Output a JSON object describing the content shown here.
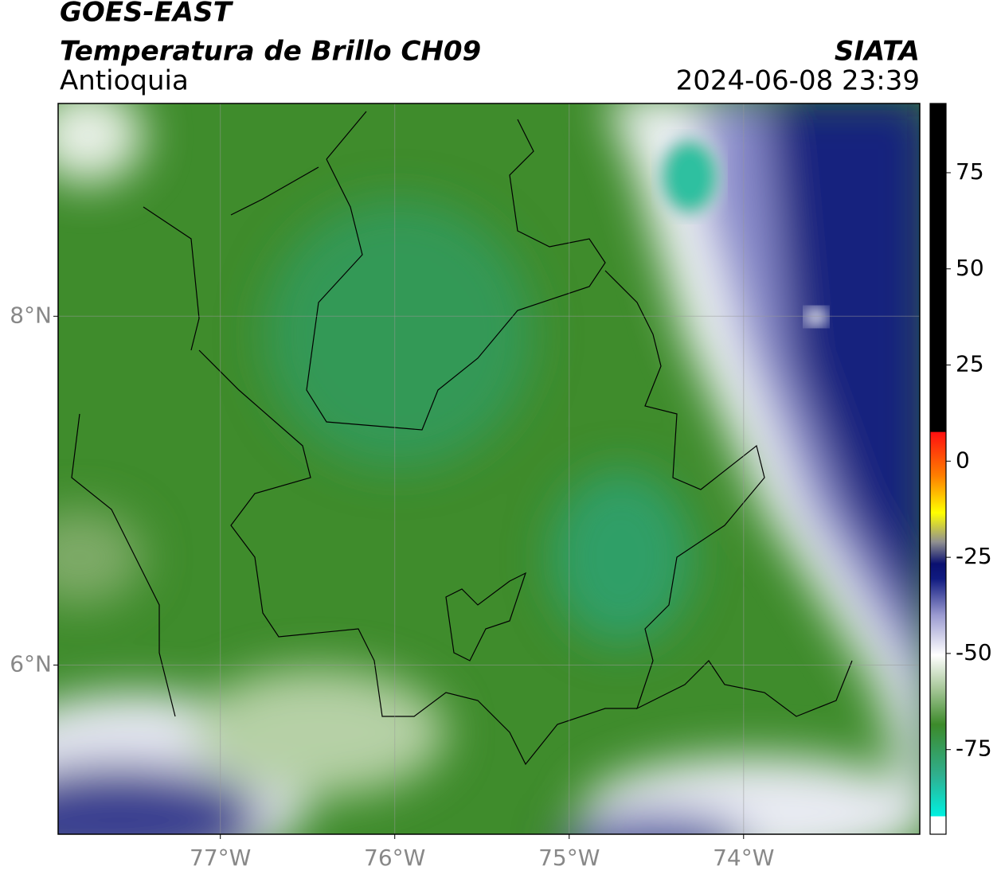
{
  "header": {
    "title": "GOES-EAST",
    "subtitle": "Temperatura de Brillo CH09",
    "region": "Antioquia",
    "source": "SIATA",
    "datetime": "2024-06-08 23:39"
  },
  "map": {
    "xlim": [
      -77.93,
      -72.99
    ],
    "ylim": [
      5.03,
      9.22
    ],
    "xticks": [
      {
        "value": -77,
        "label": "77°W"
      },
      {
        "value": -76,
        "label": "76°W"
      },
      {
        "value": -75,
        "label": "75°W"
      },
      {
        "value": -74,
        "label": "74°W"
      }
    ],
    "yticks": [
      {
        "value": 8,
        "label": "8°N"
      },
      {
        "value": 6,
        "label": "6°N"
      }
    ],
    "grid": true
  },
  "colorbar": {
    "lim": [
      -97,
      93
    ],
    "ticks": [
      75,
      50,
      25,
      0,
      -25,
      -50,
      -75
    ]
  }
}
